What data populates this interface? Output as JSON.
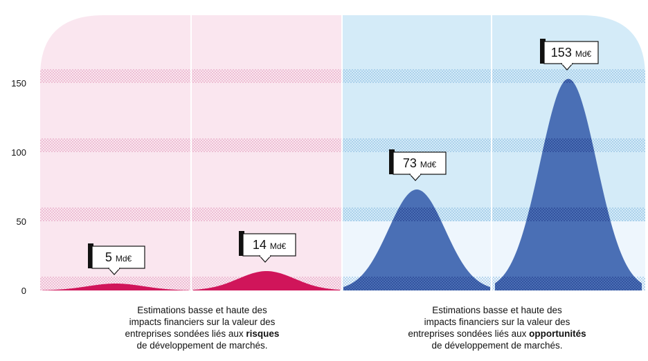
{
  "chart_data": {
    "type": "area",
    "ylim": [
      0,
      200
    ],
    "yticks": [
      0,
      50,
      100,
      150
    ],
    "grid": true,
    "series": [
      {
        "group": "risques",
        "values": [
          5,
          14
        ],
        "labels": [
          "5",
          "14"
        ],
        "unit": "Md€",
        "color": "#d0155a"
      },
      {
        "group": "opportunites",
        "values": [
          73,
          153
        ],
        "labels": [
          "73",
          "153"
        ],
        "unit": "Md€",
        "color": "#4a6fb5"
      }
    ],
    "background_colors": {
      "risques": "#fae6ef",
      "opportunites": "#d4ebf8",
      "opportunites_light": "#eef6fd"
    }
  },
  "captions": {
    "left": {
      "line1": "Estimations basse et haute des",
      "line2": "impacts financiers sur la valeur des",
      "line3_pre": "entreprises sondées liés aux ",
      "line3_bold": "risques",
      "line4": "de développement de marchés."
    },
    "right": {
      "line1": "Estimations basse et haute des",
      "line2": "impacts financiers sur la valeur des",
      "line3_pre": "entreprises sondées liés aux ",
      "line3_bold": "opportunités",
      "line4": "de développement de marchés."
    }
  }
}
